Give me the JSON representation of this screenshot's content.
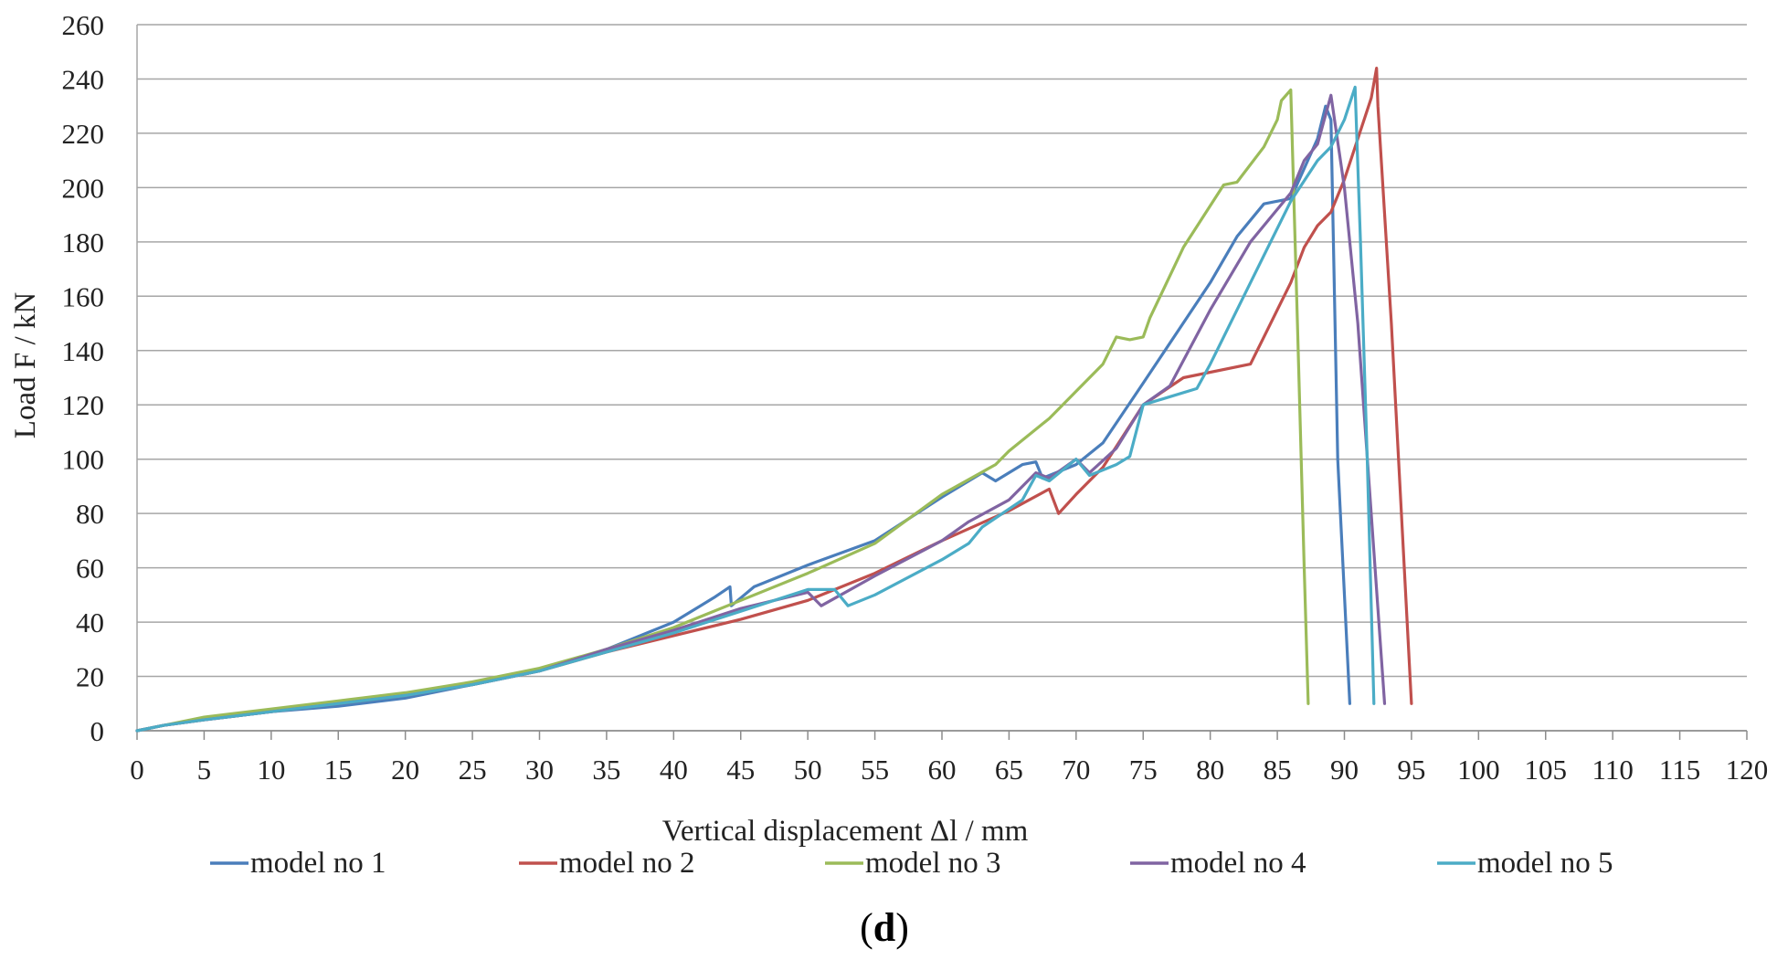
{
  "chart_data": {
    "type": "line",
    "title": "",
    "xlabel": "Vertical displacement Δl / mm",
    "ylabel": "Load F / kN",
    "xlim": [
      0,
      120
    ],
    "ylim": [
      0,
      260
    ],
    "x_ticks": [
      0,
      5,
      10,
      15,
      20,
      25,
      30,
      35,
      40,
      45,
      50,
      55,
      60,
      65,
      70,
      75,
      80,
      85,
      90,
      95,
      100,
      105,
      110,
      115,
      120
    ],
    "y_ticks": [
      0,
      20,
      40,
      60,
      80,
      100,
      120,
      140,
      160,
      180,
      200,
      220,
      240,
      260
    ],
    "grid": "horizontal",
    "legend_position": "bottom",
    "panel_label": "d",
    "series": [
      {
        "name": "model no 1",
        "color": "#4a7ebb",
        "points": [
          [
            0,
            0
          ],
          [
            2,
            2
          ],
          [
            5,
            4
          ],
          [
            10,
            7
          ],
          [
            15,
            9
          ],
          [
            20,
            12
          ],
          [
            25,
            17
          ],
          [
            30,
            22
          ],
          [
            35,
            30
          ],
          [
            40,
            40
          ],
          [
            43,
            49
          ],
          [
            44.2,
            53
          ],
          [
            44.3,
            46
          ],
          [
            46,
            53
          ],
          [
            50,
            61
          ],
          [
            55,
            70
          ],
          [
            60,
            86
          ],
          [
            63,
            95
          ],
          [
            64,
            92
          ],
          [
            66,
            98
          ],
          [
            67,
            99
          ],
          [
            67.5,
            93
          ],
          [
            70,
            98
          ],
          [
            72,
            106
          ],
          [
            75,
            128
          ],
          [
            80,
            165
          ],
          [
            82,
            182
          ],
          [
            84,
            194
          ],
          [
            86,
            196
          ],
          [
            88,
            218
          ],
          [
            88.6,
            230
          ],
          [
            89,
            225
          ],
          [
            89.5,
            100
          ],
          [
            90.4,
            10
          ]
        ]
      },
      {
        "name": "model no 2",
        "color": "#c0504d",
        "points": [
          [
            0,
            0
          ],
          [
            2,
            2
          ],
          [
            5,
            4
          ],
          [
            10,
            7
          ],
          [
            15,
            10
          ],
          [
            20,
            13
          ],
          [
            25,
            17
          ],
          [
            30,
            22
          ],
          [
            35,
            29
          ],
          [
            40,
            35
          ],
          [
            45,
            41
          ],
          [
            50,
            48
          ],
          [
            55,
            58
          ],
          [
            60,
            70
          ],
          [
            65,
            81
          ],
          [
            68,
            89
          ],
          [
            68.7,
            80
          ],
          [
            70,
            87
          ],
          [
            72,
            97
          ],
          [
            75,
            120
          ],
          [
            78,
            130
          ],
          [
            83,
            135
          ],
          [
            84,
            145
          ],
          [
            86,
            165
          ],
          [
            87,
            178
          ],
          [
            88,
            186
          ],
          [
            89,
            191
          ],
          [
            90,
            203
          ],
          [
            92,
            233
          ],
          [
            92.4,
            244
          ],
          [
            92.5,
            230
          ],
          [
            93.5,
            150
          ],
          [
            95,
            10
          ]
        ]
      },
      {
        "name": "model no 3",
        "color": "#9bbb59",
        "points": [
          [
            0,
            0
          ],
          [
            2,
            2
          ],
          [
            5,
            5
          ],
          [
            10,
            8
          ],
          [
            15,
            11
          ],
          [
            20,
            14
          ],
          [
            25,
            18
          ],
          [
            30,
            23
          ],
          [
            35,
            30
          ],
          [
            40,
            38
          ],
          [
            45,
            48
          ],
          [
            50,
            58
          ],
          [
            55,
            69
          ],
          [
            60,
            87
          ],
          [
            64,
            98
          ],
          [
            65,
            103
          ],
          [
            68,
            115
          ],
          [
            72,
            135
          ],
          [
            73,
            145
          ],
          [
            74,
            144
          ],
          [
            75,
            145
          ],
          [
            75.5,
            152
          ],
          [
            78,
            178
          ],
          [
            81,
            201
          ],
          [
            82,
            202
          ],
          [
            84,
            215
          ],
          [
            85,
            225
          ],
          [
            85.3,
            232
          ],
          [
            86,
            236
          ],
          [
            86.5,
            150
          ],
          [
            87,
            60
          ],
          [
            87.3,
            10
          ]
        ]
      },
      {
        "name": "model no 4",
        "color": "#8064a2",
        "points": [
          [
            0,
            0
          ],
          [
            2,
            2
          ],
          [
            5,
            4
          ],
          [
            10,
            7
          ],
          [
            15,
            10
          ],
          [
            20,
            13
          ],
          [
            25,
            17
          ],
          [
            30,
            22
          ],
          [
            35,
            30
          ],
          [
            40,
            37
          ],
          [
            45,
            45
          ],
          [
            50,
            51
          ],
          [
            51,
            46
          ],
          [
            55,
            57
          ],
          [
            60,
            70
          ],
          [
            62,
            77
          ],
          [
            65,
            85
          ],
          [
            67,
            95
          ],
          [
            68,
            93
          ],
          [
            70,
            100
          ],
          [
            71,
            95
          ],
          [
            73,
            104
          ],
          [
            75,
            120
          ],
          [
            77,
            127
          ],
          [
            80,
            155
          ],
          [
            83,
            180
          ],
          [
            86,
            198
          ],
          [
            87,
            210
          ],
          [
            88,
            216
          ],
          [
            89,
            234
          ],
          [
            90,
            200
          ],
          [
            91,
            150
          ],
          [
            93,
            10
          ]
        ]
      },
      {
        "name": "model no 5",
        "color": "#4bacc6",
        "points": [
          [
            0,
            0
          ],
          [
            2,
            2
          ],
          [
            5,
            4
          ],
          [
            10,
            7
          ],
          [
            15,
            10
          ],
          [
            20,
            13
          ],
          [
            25,
            17
          ],
          [
            30,
            22
          ],
          [
            35,
            29
          ],
          [
            40,
            36
          ],
          [
            45,
            44
          ],
          [
            50,
            52
          ],
          [
            52,
            52
          ],
          [
            53,
            46
          ],
          [
            55,
            50
          ],
          [
            60,
            63
          ],
          [
            62,
            69
          ],
          [
            63,
            75
          ],
          [
            66,
            85
          ],
          [
            67,
            94
          ],
          [
            68,
            92
          ],
          [
            70,
            100
          ],
          [
            71,
            94
          ],
          [
            73,
            98
          ],
          [
            74,
            101
          ],
          [
            75,
            120
          ],
          [
            77,
            123
          ],
          [
            79,
            126
          ],
          [
            80,
            135
          ],
          [
            82,
            155
          ],
          [
            84,
            175
          ],
          [
            86,
            195
          ],
          [
            88,
            210
          ],
          [
            89,
            215
          ],
          [
            90,
            225
          ],
          [
            90.8,
            237
          ],
          [
            91.2,
            180
          ],
          [
            91.7,
            100
          ],
          [
            92.2,
            10
          ]
        ]
      }
    ]
  }
}
